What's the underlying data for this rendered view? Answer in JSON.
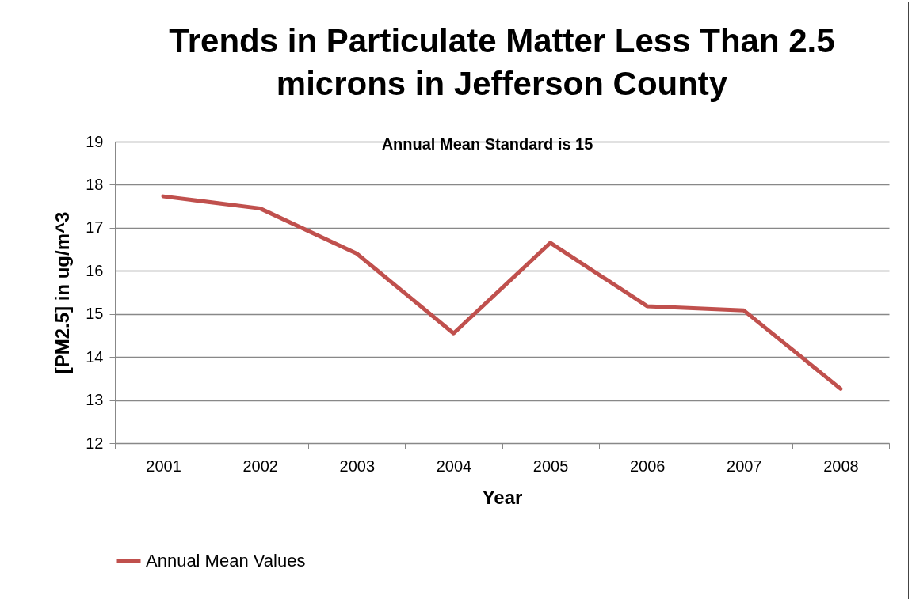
{
  "chart_data": {
    "type": "line",
    "title": "Trends in Particulate Matter Less Than 2.5 microns in Jefferson County",
    "xlabel": "Year",
    "ylabel": "[PM2.5] in ug/m^3",
    "annotations": [
      "Annual Mean Standard is 15"
    ],
    "categories": [
      "2001",
      "2002",
      "2003",
      "2004",
      "2005",
      "2006",
      "2007",
      "2008"
    ],
    "series": [
      {
        "name": "Annual Mean Values",
        "color": "#c0504d",
        "values": [
          17.73,
          17.45,
          16.4,
          14.55,
          16.65,
          15.18,
          15.08,
          13.26
        ]
      }
    ],
    "ylim": [
      12,
      19
    ],
    "yticks": [
      12,
      13,
      14,
      15,
      16,
      17,
      18,
      19
    ],
    "grid": "y",
    "legend": "bottom",
    "marker": "none",
    "line_style": "solid"
  }
}
